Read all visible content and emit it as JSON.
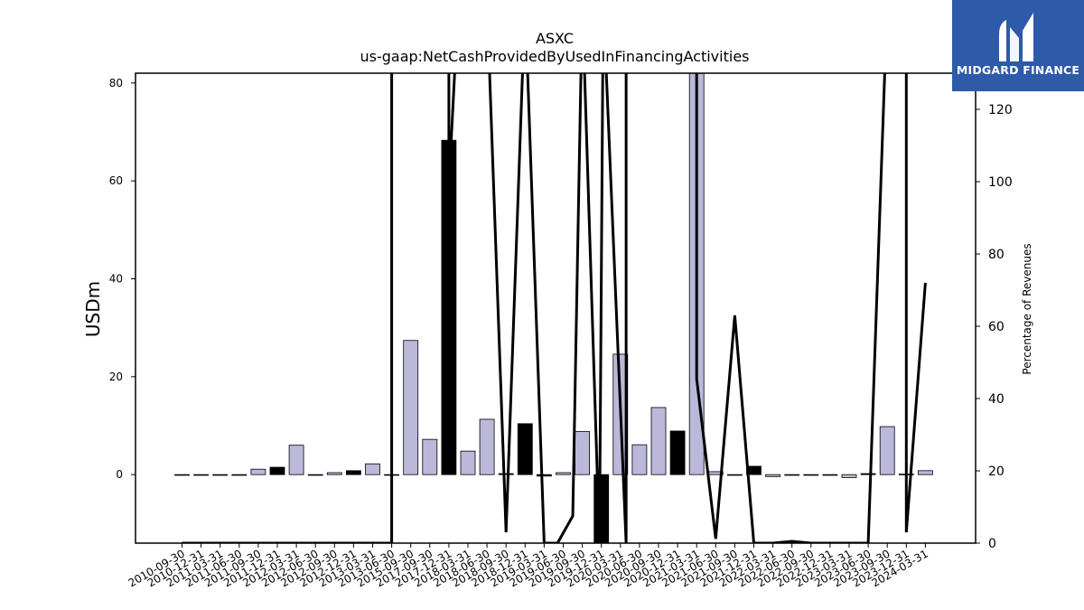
{
  "chart_data": {
    "type": "bar",
    "title": "ASXC",
    "subtitle": "us-gaap:NetCashProvidedByUsedInFinancingActivities",
    "ylabel": "USDm",
    "y2label": "Percentage of Revenues",
    "ylim": [
      -14,
      82
    ],
    "y2lim": [
      0,
      130
    ],
    "yticks": [
      0,
      20,
      40,
      60,
      80
    ],
    "y2ticks": [
      0,
      20,
      40,
      60,
      80,
      100,
      120
    ],
    "x_tick_labels": [
      "2010-09-30",
      "2010-12-31",
      "2011-03-31",
      "2011-06-30",
      "2011-09-30",
      "2011-12-31",
      "2012-03-31",
      "2012-06-30",
      "2012-09-30",
      "2012-12-31",
      "2013-03-31",
      "2013-06-30",
      "2015-09-30",
      "2017-09-30",
      "2017-12-31",
      "2018-03-31",
      "2018-06-30",
      "2018-09-30",
      "2018-12-31",
      "2019-03-31",
      "2019-06-30",
      "2019-09-30",
      "2019-12-31",
      "2020-03-31",
      "2020-06-30",
      "2020-09-30",
      "2020-12-31",
      "2021-03-31",
      "2021-06-30",
      "2021-09-30",
      "2021-12-31",
      "2022-03-31",
      "2022-06-30",
      "2022-09-30",
      "2022-12-31",
      "2023-03-31",
      "2023-06-30",
      "2023-09-30",
      "2023-12-31",
      "2024-03-31"
    ],
    "bars": [
      {
        "value": 0.0,
        "highlight": false
      },
      {
        "value": 0.0,
        "highlight": false
      },
      {
        "value": 0.0,
        "highlight": false
      },
      {
        "value": 0.0,
        "highlight": false
      },
      {
        "value": 1.1,
        "highlight": false
      },
      {
        "value": 1.5,
        "highlight": true
      },
      {
        "value": 6.0,
        "highlight": false
      },
      {
        "value": 0.0,
        "highlight": false
      },
      {
        "value": 0.4,
        "highlight": false
      },
      {
        "value": 0.8,
        "highlight": true
      },
      {
        "value": 2.2,
        "highlight": false
      },
      {
        "value": 0.0,
        "highlight": false
      },
      {
        "value": 27.4,
        "highlight": false
      },
      {
        "value": 7.2,
        "highlight": false
      },
      {
        "value": 68.3,
        "highlight": true
      },
      {
        "value": 4.8,
        "highlight": false
      },
      {
        "value": 11.3,
        "highlight": false
      },
      {
        "value": 0.2,
        "highlight": true
      },
      {
        "value": 10.4,
        "highlight": true
      },
      {
        "value": -0.3,
        "highlight": true
      },
      {
        "value": 0.4,
        "highlight": false
      },
      {
        "value": 8.8,
        "highlight": false
      },
      {
        "value": -15.0,
        "highlight": true
      },
      {
        "value": 24.6,
        "highlight": false
      },
      {
        "value": 6.1,
        "highlight": false
      },
      {
        "value": 13.7,
        "highlight": false
      },
      {
        "value": 8.9,
        "highlight": true
      },
      {
        "value": 85.0,
        "highlight": false
      },
      {
        "value": 0.6,
        "highlight": false
      },
      {
        "value": 0.0,
        "highlight": false
      },
      {
        "value": 1.7,
        "highlight": true
      },
      {
        "value": -0.4,
        "highlight": false
      },
      {
        "value": 0.0,
        "highlight": false
      },
      {
        "value": 0.0,
        "highlight": false
      },
      {
        "value": 0.0,
        "highlight": false
      },
      {
        "value": -0.6,
        "highlight": false
      },
      {
        "value": 0.2,
        "highlight": true
      },
      {
        "value": 9.8,
        "highlight": false
      },
      {
        "value": 0.1,
        "highlight": true
      },
      {
        "value": 0.8,
        "highlight": false
      }
    ],
    "line_percentage": [
      0,
      0,
      0,
      0,
      0,
      0,
      0,
      0,
      0,
      0,
      0,
      0,
      0,
      150,
      150,
      99,
      150,
      150,
      3,
      150,
      0,
      0,
      7.5,
      150,
      0,
      150,
      0,
      150,
      150,
      45.5,
      1.2,
      63,
      0,
      0,
      0.5,
      0,
      0,
      0,
      150,
      150,
      3,
      72
    ],
    "line_x_index": [
      0,
      1,
      2,
      3,
      4,
      5,
      6,
      7,
      7,
      11,
      11,
      11,
      11,
      11,
      14,
      14,
      14.5,
      16,
      17,
      18,
      19,
      19.7,
      20.5,
      21,
      21.9,
      22.1,
      23.3,
      23.3,
      27,
      27,
      28,
      29,
      30,
      31,
      32,
      33,
      34,
      36,
      37,
      38,
      38,
      39
    ],
    "bar_color": "#bcb8d9",
    "highlight_color": "#000000",
    "line_color": "#000000",
    "grid": false
  },
  "logo": {
    "text": "MIDGARD FINANCE",
    "background": "#2d5aa9"
  }
}
